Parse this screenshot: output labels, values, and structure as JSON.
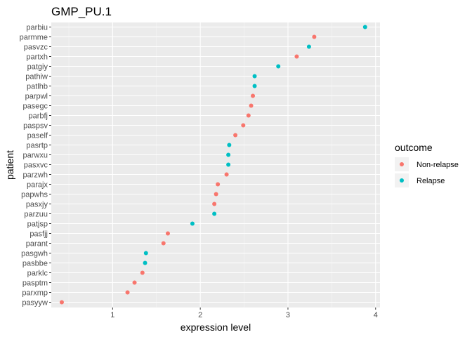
{
  "chart_data": {
    "type": "scatter",
    "title": "GMP_PU.1",
    "xlabel": "expression level",
    "ylabel": "patient",
    "xlim": [
      0.3,
      4.05
    ],
    "xticks": [
      1,
      2,
      3,
      4
    ],
    "grid": true,
    "legend": {
      "title": "outcome",
      "placement": "right",
      "entries": [
        {
          "name": "Non-relapse",
          "color": "#F8766D"
        },
        {
          "name": "Relapse",
          "color": "#00BFC4"
        }
      ]
    },
    "categories": [
      "parbiu",
      "parmme",
      "pasvzc",
      "partxh",
      "patgiy",
      "pathiw",
      "patlhb",
      "parpwl",
      "pasegc",
      "parbfj",
      "paspsv",
      "paself",
      "pasrtp",
      "parwxu",
      "pasxvc",
      "parzwh",
      "parajx",
      "papwhs",
      "pasxjy",
      "parzuu",
      "patjsp",
      "pasfjj",
      "parant",
      "pasgwh",
      "pasbbe",
      "parklc",
      "pasptm",
      "parxmp",
      "pasyyw"
    ],
    "points": [
      {
        "patient": "parbiu",
        "x": 3.88,
        "outcome": "Relapse"
      },
      {
        "patient": "parmme",
        "x": 3.3,
        "outcome": "Non-relapse"
      },
      {
        "patient": "pasvzc",
        "x": 3.24,
        "outcome": "Relapse"
      },
      {
        "patient": "partxh",
        "x": 3.1,
        "outcome": "Non-relapse"
      },
      {
        "patient": "patgiy",
        "x": 2.89,
        "outcome": "Relapse"
      },
      {
        "patient": "pathiw",
        "x": 2.62,
        "outcome": "Relapse"
      },
      {
        "patient": "patlhb",
        "x": 2.62,
        "outcome": "Relapse"
      },
      {
        "patient": "parpwl",
        "x": 2.6,
        "outcome": "Non-relapse"
      },
      {
        "patient": "pasegc",
        "x": 2.58,
        "outcome": "Non-relapse"
      },
      {
        "patient": "parbfj",
        "x": 2.55,
        "outcome": "Non-relapse"
      },
      {
        "patient": "paspsv",
        "x": 2.49,
        "outcome": "Non-relapse"
      },
      {
        "patient": "paself",
        "x": 2.4,
        "outcome": "Non-relapse"
      },
      {
        "patient": "pasrtp",
        "x": 2.33,
        "outcome": "Relapse"
      },
      {
        "patient": "parwxu",
        "x": 2.32,
        "outcome": "Relapse"
      },
      {
        "patient": "pasxvc",
        "x": 2.32,
        "outcome": "Relapse"
      },
      {
        "patient": "parzwh",
        "x": 2.3,
        "outcome": "Non-relapse"
      },
      {
        "patient": "parajx",
        "x": 2.2,
        "outcome": "Non-relapse"
      },
      {
        "patient": "papwhs",
        "x": 2.18,
        "outcome": "Non-relapse"
      },
      {
        "patient": "pasxjy",
        "x": 2.16,
        "outcome": "Non-relapse"
      },
      {
        "patient": "parzuu",
        "x": 2.16,
        "outcome": "Relapse"
      },
      {
        "patient": "patjsp",
        "x": 1.91,
        "outcome": "Relapse"
      },
      {
        "patient": "pasfjj",
        "x": 1.63,
        "outcome": "Non-relapse"
      },
      {
        "patient": "parant",
        "x": 1.58,
        "outcome": "Non-relapse"
      },
      {
        "patient": "pasgwh",
        "x": 1.38,
        "outcome": "Relapse"
      },
      {
        "patient": "pasbbe",
        "x": 1.37,
        "outcome": "Relapse"
      },
      {
        "patient": "parklc",
        "x": 1.34,
        "outcome": "Non-relapse"
      },
      {
        "patient": "pasptm",
        "x": 1.25,
        "outcome": "Non-relapse"
      },
      {
        "patient": "parxmp",
        "x": 1.17,
        "outcome": "Non-relapse"
      },
      {
        "patient": "pasyyw",
        "x": 0.42,
        "outcome": "Non-relapse"
      }
    ],
    "colors": {
      "panel_background": "#EBEBEB",
      "grid_major": "#FFFFFF",
      "Non-relapse": "#F8766D",
      "Relapse": "#00BFC4"
    }
  }
}
